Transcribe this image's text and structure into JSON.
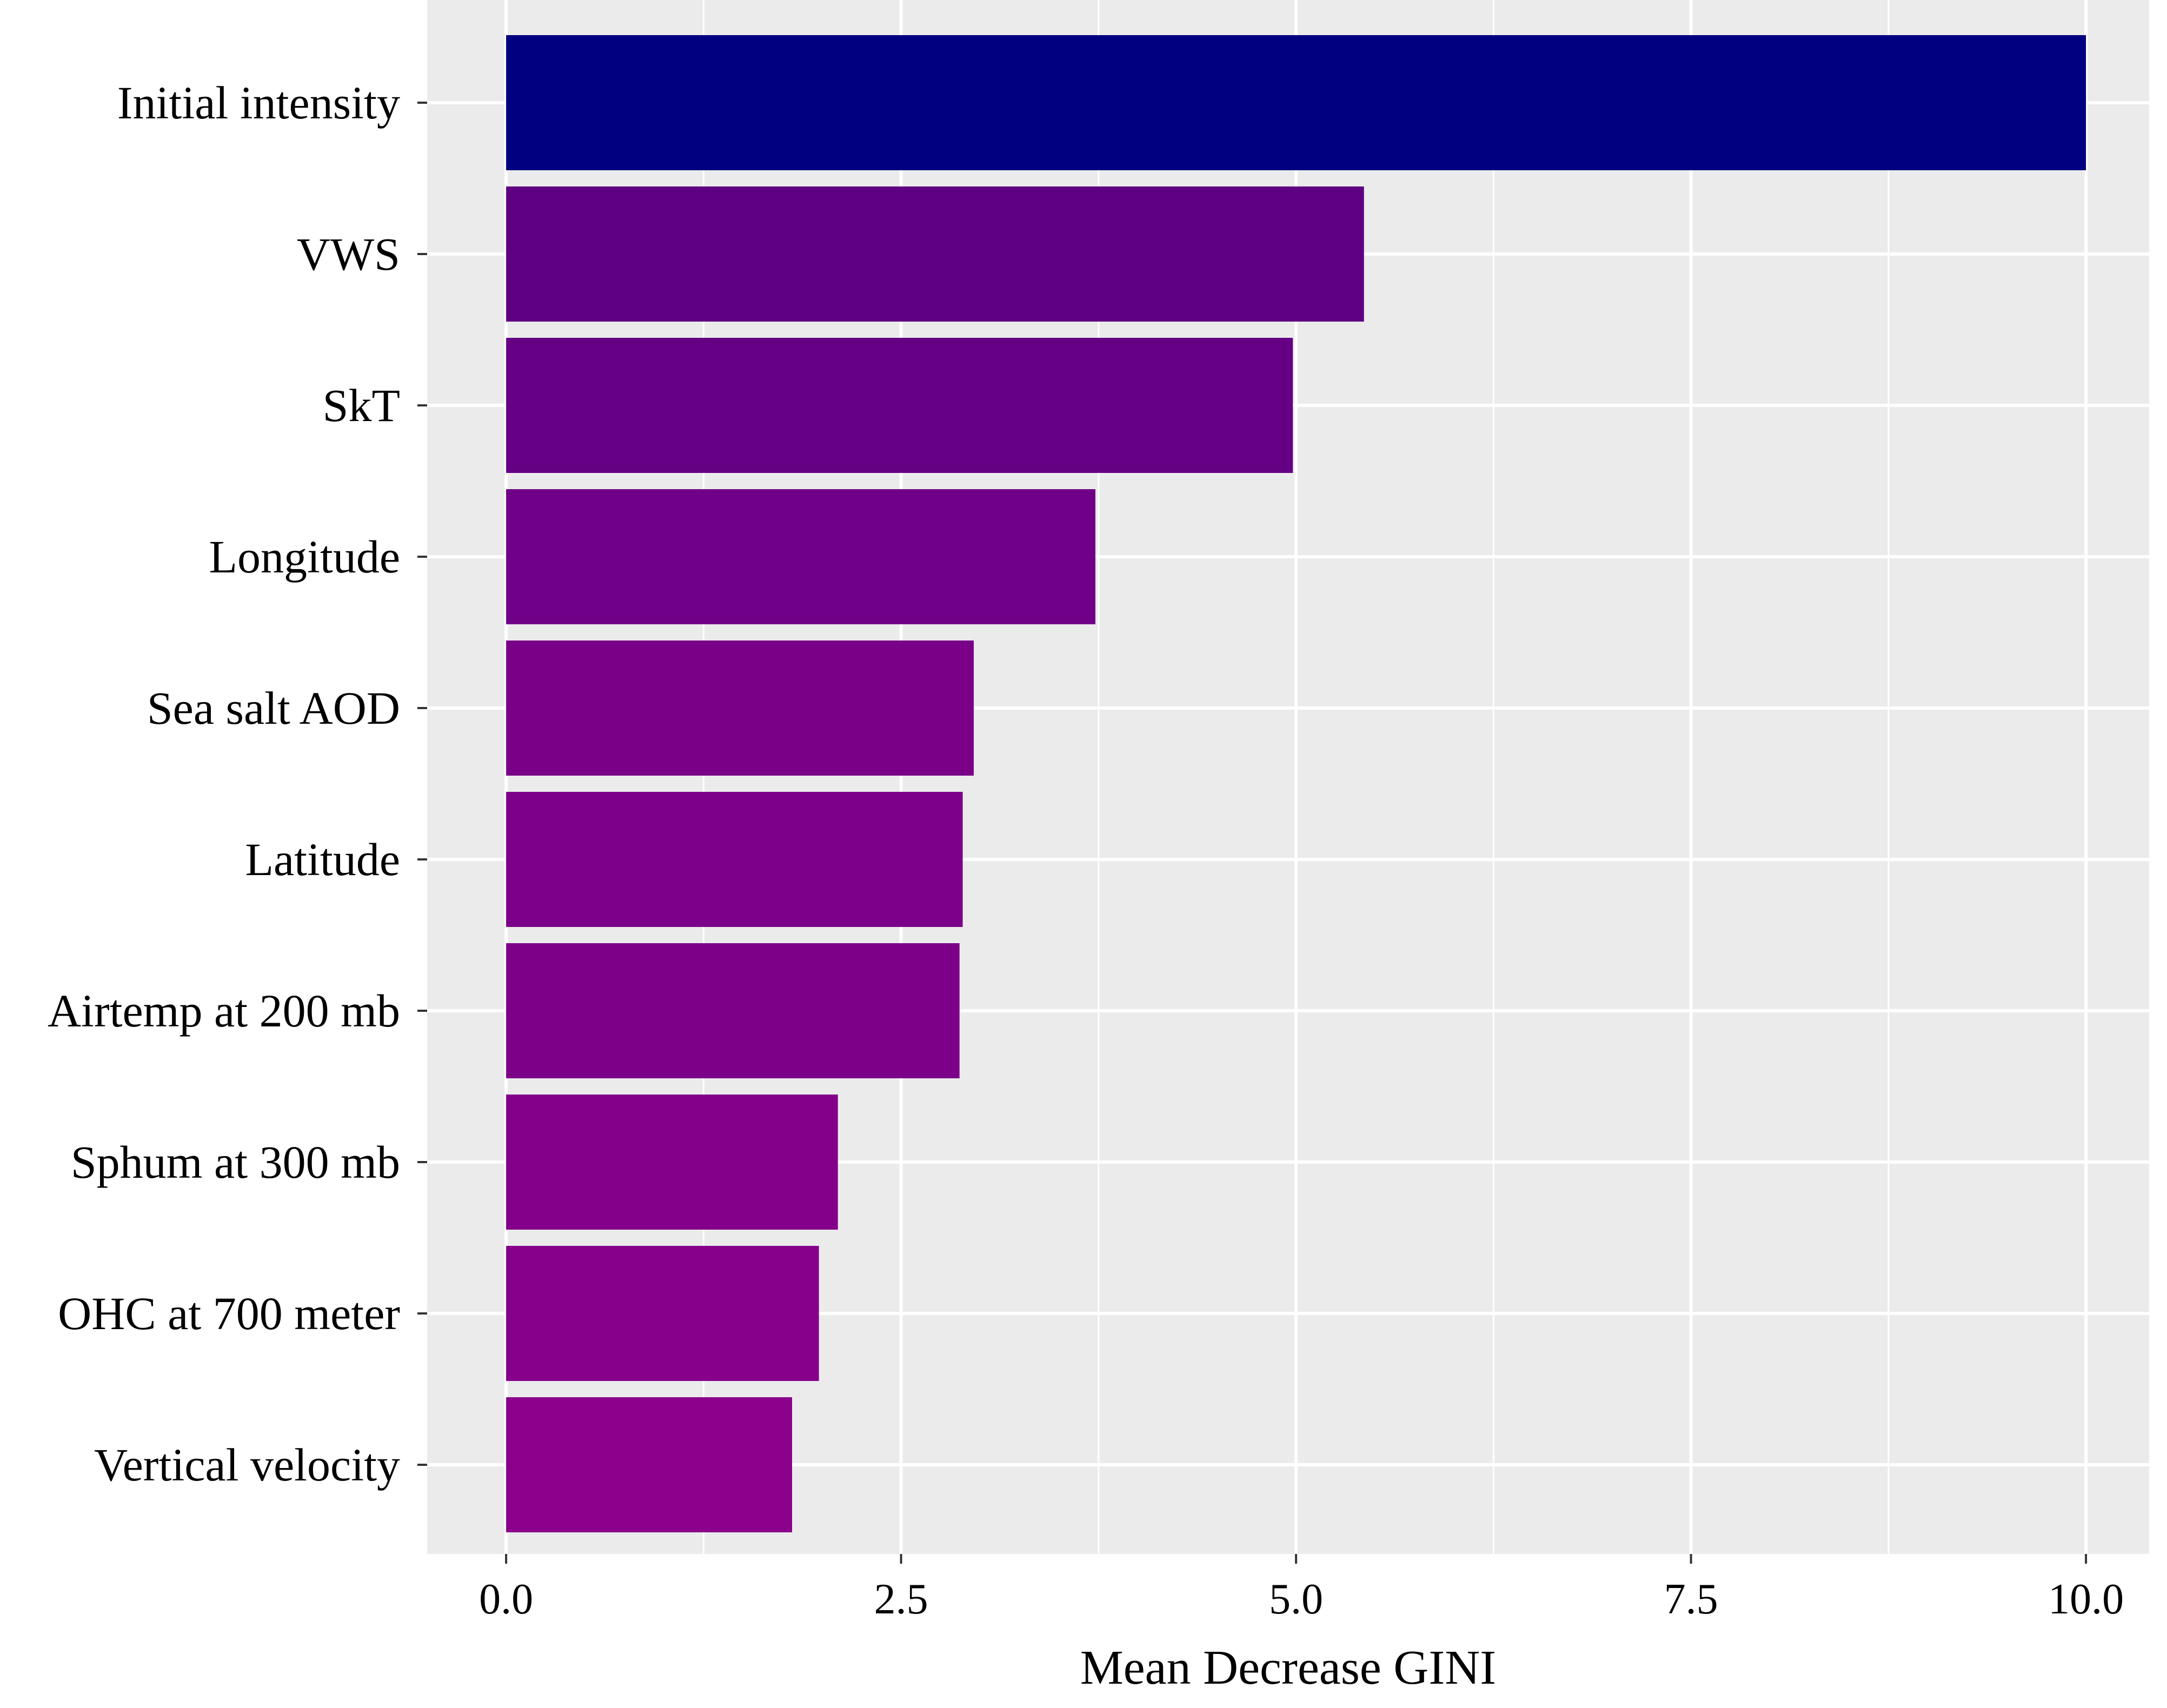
{
  "chart_data": {
    "type": "bar",
    "orientation": "horizontal",
    "categories": [
      "Initial intensity",
      "VWS",
      "SkT",
      "Longitude",
      "Sea salt AOD",
      "Latitude",
      "Airtemp at 200 mb",
      "Sphum at 300 mb",
      "OHC at 700 meter",
      "Vertical velocity"
    ],
    "values": [
      10.0,
      5.43,
      4.98,
      3.73,
      2.96,
      2.89,
      2.87,
      2.1,
      1.98,
      1.81
    ],
    "bar_colors": [
      "#000080",
      "#5f0083",
      "#650084",
      "#700087",
      "#7a0088",
      "#7c0089",
      "#7d0089",
      "#84008a",
      "#86008b",
      "#8a008b"
    ],
    "xlabel": "Mean Decrease GINI",
    "ylabel": "",
    "title": "",
    "xlim": [
      -0.5,
      10.4
    ],
    "x_ticks": [
      0.0,
      2.5,
      5.0,
      7.5,
      10.0
    ],
    "x_tick_labels": [
      "0.0",
      "2.5",
      "5.0",
      "7.5",
      "10.0"
    ],
    "grid": true,
    "legend": "none",
    "panel_color": "#ebebeb",
    "grid_color": "#ffffff"
  }
}
